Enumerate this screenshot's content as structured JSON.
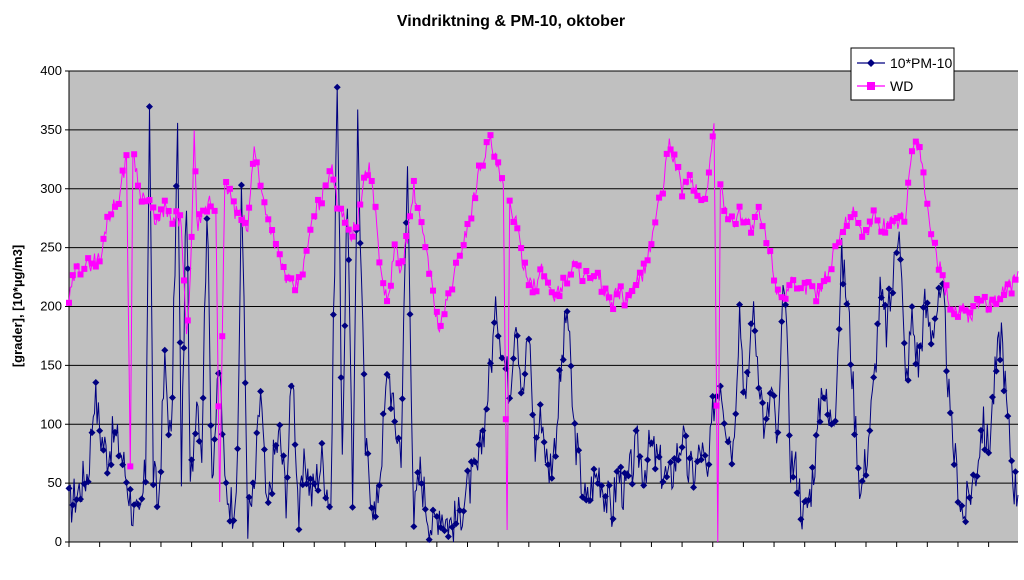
{
  "chart_data": {
    "type": "line",
    "title": "Vindriktning & PM-10, oktober",
    "ylabel": "[grader], [10*µg/m3]",
    "xlabel": "",
    "ylim": [
      0,
      400
    ],
    "y_ticks": [
      0,
      50,
      100,
      150,
      200,
      250,
      300,
      350,
      400
    ],
    "grid": "horizontal",
    "legend_position": "top-right",
    "plot_background": "#c0c0c0",
    "x_count": 744,
    "series": [
      {
        "name": "10*PM-10",
        "color": "#000080",
        "marker": "diamond",
        "anchors": [
          [
            0,
            30
          ],
          [
            8,
            45
          ],
          [
            15,
            60
          ],
          [
            20,
            128
          ],
          [
            25,
            90
          ],
          [
            30,
            75
          ],
          [
            35,
            90
          ],
          [
            40,
            80
          ],
          [
            45,
            55
          ],
          [
            50,
            25
          ],
          [
            55,
            15
          ],
          [
            60,
            60
          ],
          [
            63,
            376
          ],
          [
            66,
            60
          ],
          [
            70,
            30
          ],
          [
            75,
            150
          ],
          [
            80,
            80
          ],
          [
            85,
            350
          ],
          [
            88,
            60
          ],
          [
            92,
            300
          ],
          [
            95,
            40
          ],
          [
            100,
            130
          ],
          [
            104,
            80
          ],
          [
            108,
            290
          ],
          [
            112,
            60
          ],
          [
            118,
            150
          ],
          [
            122,
            50
          ],
          [
            128,
            30
          ],
          [
            132,
            60
          ],
          [
            135,
            310
          ],
          [
            140,
            20
          ],
          [
            145,
            40
          ],
          [
            150,
            130
          ],
          [
            155,
            20
          ],
          [
            160,
            70
          ],
          [
            165,
            90
          ],
          [
            170,
            40
          ],
          [
            175,
            150
          ],
          [
            180,
            20
          ],
          [
            185,
            70
          ],
          [
            190,
            40
          ],
          [
            198,
            70
          ],
          [
            205,
            30
          ],
          [
            210,
            390
          ],
          [
            214,
            80
          ],
          [
            218,
            300
          ],
          [
            222,
            30
          ],
          [
            226,
            360
          ],
          [
            232,
            80
          ],
          [
            236,
            50
          ],
          [
            240,
            20
          ],
          [
            245,
            80
          ],
          [
            250,
            150
          ],
          [
            255,
            100
          ],
          [
            260,
            80
          ],
          [
            265,
            320
          ],
          [
            270,
            20
          ],
          [
            275,
            60
          ],
          [
            280,
            30
          ],
          [
            285,
            10
          ],
          [
            290,
            30
          ],
          [
            295,
            20
          ],
          [
            300,
            15
          ],
          [
            305,
            20
          ],
          [
            310,
            40
          ],
          [
            315,
            50
          ],
          [
            320,
            60
          ],
          [
            325,
            100
          ],
          [
            330,
            150
          ],
          [
            335,
            200
          ],
          [
            340,
            160
          ],
          [
            345,
            130
          ],
          [
            350,
            200
          ],
          [
            355,
            120
          ],
          [
            360,
            180
          ],
          [
            365,
            80
          ],
          [
            370,
            110
          ],
          [
            375,
            60
          ],
          [
            380,
            80
          ],
          [
            385,
            140
          ],
          [
            390,
            200
          ],
          [
            395,
            100
          ],
          [
            400,
            60
          ],
          [
            405,
            30
          ],
          [
            410,
            50
          ],
          [
            415,
            60
          ],
          [
            420,
            40
          ],
          [
            425,
            25
          ],
          [
            430,
            60
          ],
          [
            435,
            40
          ],
          [
            440,
            60
          ],
          [
            445,
            80
          ],
          [
            450,
            60
          ],
          [
            455,
            80
          ],
          [
            460,
            70
          ],
          [
            465,
            60
          ],
          [
            470,
            50
          ],
          [
            475,
            70
          ],
          [
            480,
            90
          ],
          [
            485,
            60
          ],
          [
            490,
            60
          ],
          [
            495,
            80
          ],
          [
            500,
            50
          ],
          [
            505,
            120
          ],
          [
            510,
            140
          ],
          [
            515,
            100
          ],
          [
            520,
            80
          ],
          [
            525,
            200
          ],
          [
            530,
            110
          ],
          [
            535,
            200
          ],
          [
            540,
            150
          ],
          [
            545,
            90
          ],
          [
            550,
            130
          ],
          [
            555,
            80
          ],
          [
            560,
            230
          ],
          [
            565,
            70
          ],
          [
            570,
            60
          ],
          [
            575,
            20
          ],
          [
            580,
            40
          ],
          [
            585,
            80
          ],
          [
            590,
            140
          ],
          [
            595,
            100
          ],
          [
            600,
            120
          ],
          [
            605,
            240
          ],
          [
            610,
            200
          ],
          [
            615,
            110
          ],
          [
            620,
            40
          ],
          [
            625,
            80
          ],
          [
            630,
            130
          ],
          [
            635,
            210
          ],
          [
            640,
            180
          ],
          [
            645,
            220
          ],
          [
            650,
            280
          ],
          [
            655,
            130
          ],
          [
            660,
            190
          ],
          [
            665,
            150
          ],
          [
            670,
            200
          ],
          [
            675,
            180
          ],
          [
            680,
            200
          ],
          [
            685,
            200
          ],
          [
            690,
            100
          ],
          [
            695,
            60
          ],
          [
            700,
            20
          ],
          [
            705,
            40
          ],
          [
            710,
            60
          ],
          [
            715,
            100
          ],
          [
            720,
            80
          ],
          [
            725,
            140
          ],
          [
            730,
            180
          ],
          [
            735,
            100
          ],
          [
            740,
            50
          ],
          [
            743,
            40
          ]
        ]
      },
      {
        "name": "WD",
        "color": "#ff00ff",
        "marker": "square",
        "anchors": [
          [
            0,
            205
          ],
          [
            5,
            230
          ],
          [
            10,
            235
          ],
          [
            15,
            235
          ],
          [
            20,
            240
          ],
          [
            25,
            240
          ],
          [
            30,
            275
          ],
          [
            35,
            285
          ],
          [
            40,
            295
          ],
          [
            45,
            330
          ],
          [
            48,
            60
          ],
          [
            50,
            335
          ],
          [
            55,
            300
          ],
          [
            60,
            290
          ],
          [
            65,
            280
          ],
          [
            70,
            270
          ],
          [
            75,
            285
          ],
          [
            80,
            270
          ],
          [
            85,
            275
          ],
          [
            88,
            270
          ],
          [
            92,
            170
          ],
          [
            95,
            220
          ],
          [
            98,
            350
          ],
          [
            100,
            270
          ],
          [
            105,
            275
          ],
          [
            110,
            290
          ],
          [
            115,
            280
          ],
          [
            118,
            40
          ],
          [
            122,
            300
          ],
          [
            125,
            300
          ],
          [
            130,
            280
          ],
          [
            135,
            275
          ],
          [
            140,
            265
          ],
          [
            145,
            340
          ],
          [
            150,
            300
          ],
          [
            155,
            280
          ],
          [
            160,
            260
          ],
          [
            165,
            240
          ],
          [
            170,
            225
          ],
          [
            175,
            215
          ],
          [
            180,
            220
          ],
          [
            185,
            240
          ],
          [
            190,
            270
          ],
          [
            195,
            285
          ],
          [
            200,
            300
          ],
          [
            205,
            320
          ],
          [
            210,
            290
          ],
          [
            215,
            280
          ],
          [
            220,
            260
          ],
          [
            225,
            270
          ],
          [
            230,
            300
          ],
          [
            235,
            320
          ],
          [
            240,
            280
          ],
          [
            245,
            220
          ],
          [
            250,
            205
          ],
          [
            255,
            250
          ],
          [
            260,
            230
          ],
          [
            265,
            260
          ],
          [
            270,
            300
          ],
          [
            275,
            270
          ],
          [
            280,
            250
          ],
          [
            285,
            210
          ],
          [
            290,
            180
          ],
          [
            295,
            200
          ],
          [
            300,
            220
          ],
          [
            305,
            240
          ],
          [
            310,
            260
          ],
          [
            315,
            280
          ],
          [
            320,
            310
          ],
          [
            325,
            330
          ],
          [
            330,
            340
          ],
          [
            335,
            320
          ],
          [
            340,
            300
          ],
          [
            343,
            5
          ],
          [
            345,
            290
          ],
          [
            350,
            270
          ],
          [
            355,
            240
          ],
          [
            360,
            225
          ],
          [
            365,
            215
          ],
          [
            370,
            230
          ],
          [
            375,
            220
          ],
          [
            380,
            210
          ],
          [
            385,
            215
          ],
          [
            390,
            225
          ],
          [
            395,
            235
          ],
          [
            400,
            230
          ],
          [
            405,
            225
          ],
          [
            410,
            220
          ],
          [
            415,
            225
          ],
          [
            420,
            210
          ],
          [
            425,
            200
          ],
          [
            430,
            215
          ],
          [
            435,
            205
          ],
          [
            440,
            210
          ],
          [
            445,
            220
          ],
          [
            450,
            230
          ],
          [
            455,
            250
          ],
          [
            460,
            280
          ],
          [
            465,
            300
          ],
          [
            470,
            340
          ],
          [
            475,
            320
          ],
          [
            480,
            300
          ],
          [
            485,
            310
          ],
          [
            490,
            300
          ],
          [
            495,
            290
          ],
          [
            500,
            300
          ],
          [
            505,
            355
          ],
          [
            508,
            5
          ],
          [
            510,
            300
          ],
          [
            515,
            280
          ],
          [
            520,
            270
          ],
          [
            525,
            280
          ],
          [
            530,
            275
          ],
          [
            535,
            265
          ],
          [
            540,
            280
          ],
          [
            545,
            260
          ],
          [
            550,
            240
          ],
          [
            555,
            210
          ],
          [
            560,
            210
          ],
          [
            565,
            220
          ],
          [
            570,
            210
          ],
          [
            575,
            215
          ],
          [
            580,
            220
          ],
          [
            585,
            210
          ],
          [
            590,
            220
          ],
          [
            595,
            230
          ],
          [
            600,
            250
          ],
          [
            605,
            265
          ],
          [
            610,
            275
          ],
          [
            615,
            280
          ],
          [
            620,
            265
          ],
          [
            625,
            260
          ],
          [
            630,
            280
          ],
          [
            635,
            265
          ],
          [
            640,
            270
          ],
          [
            645,
            275
          ],
          [
            650,
            270
          ],
          [
            655,
            280
          ],
          [
            660,
            330
          ],
          [
            665,
            340
          ],
          [
            670,
            300
          ],
          [
            675,
            260
          ],
          [
            680,
            240
          ],
          [
            685,
            220
          ],
          [
            690,
            200
          ],
          [
            695,
            195
          ],
          [
            700,
            200
          ],
          [
            705,
            190
          ],
          [
            710,
            200
          ],
          [
            715,
            210
          ],
          [
            720,
            200
          ],
          [
            725,
            205
          ],
          [
            730,
            210
          ],
          [
            735,
            215
          ],
          [
            740,
            220
          ],
          [
            743,
            230
          ]
        ]
      }
    ]
  }
}
